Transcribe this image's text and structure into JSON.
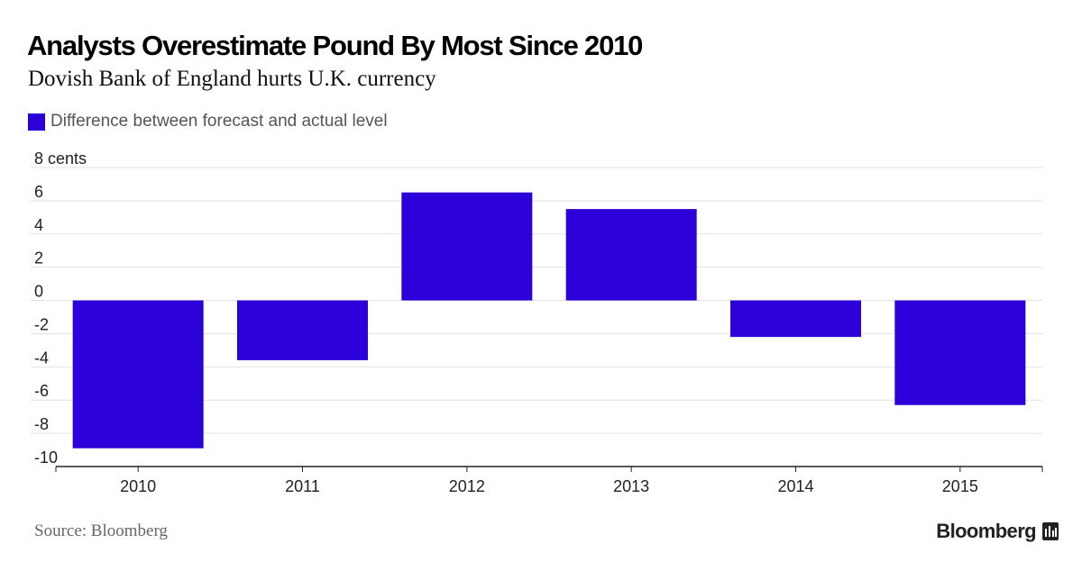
{
  "title": "Analysts Overestimate Pound By Most Since 2010",
  "subtitle": "Dovish Bank of England hurts U.K. currency",
  "legend": {
    "label": "Difference between forecast and actual level"
  },
  "source": "Source: Bloomberg",
  "brand": {
    "name": "Bloomberg",
    "icon": "bloomberg-terminal-icon"
  },
  "colors": {
    "bar": "#2b00d9",
    "grid": "#e2e2e2",
    "axis": "#222222",
    "tick_text": "#222222"
  },
  "chart_data": {
    "type": "bar",
    "title": "Analysts Overestimate Pound By Most Since 2010",
    "subtitle": "Dovish Bank of England hurts U.K. currency",
    "xlabel": "",
    "ylabel": "cents",
    "categories": [
      "2010",
      "2011",
      "2012",
      "2013",
      "2014",
      "2015"
    ],
    "series": [
      {
        "name": "Difference between forecast and actual level",
        "values": [
          -8.9,
          -3.6,
          6.5,
          5.5,
          -2.2,
          -6.3
        ]
      }
    ],
    "ylim": [
      -10,
      8
    ],
    "yticks": [
      8,
      6,
      4,
      2,
      0,
      -2,
      -4,
      -6,
      -8,
      -10
    ],
    "ytick_labels": [
      "8 cents",
      "6",
      "4",
      "2",
      "0",
      "-2",
      "-4",
      "-6",
      "-8",
      "-10"
    ],
    "grid": true,
    "legend_position": "top-left"
  }
}
